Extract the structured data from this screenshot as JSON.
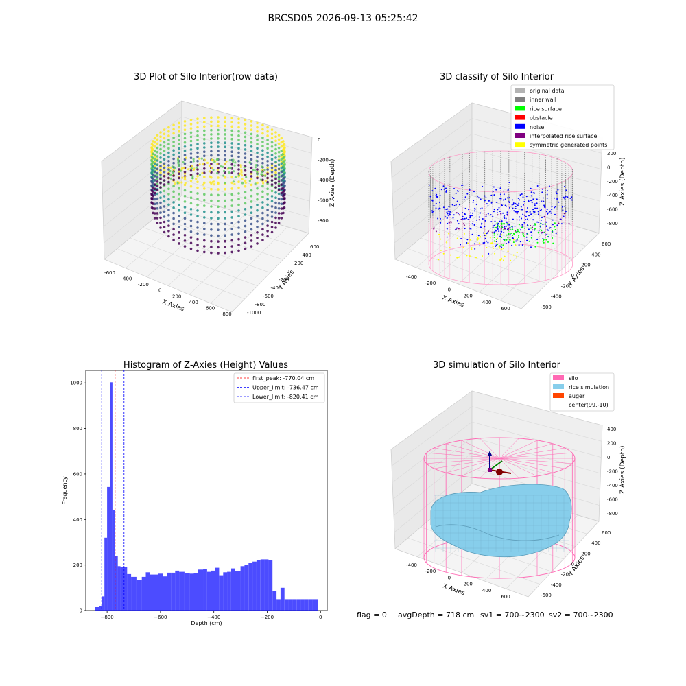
{
  "figure_title": "BRCSD05 2026-09-13 05:25:42",
  "footer": {
    "flag": "flag = 0",
    "avg_depth": "avgDepth = 718 cm",
    "sv1": "sv1 = 700~2300",
    "sv2": "sv2 = 700~2300"
  },
  "chart_data": [
    {
      "type": "scatter",
      "panel": "3d-raw",
      "title": "3D Plot of Silo Interior(row data)",
      "xlabel": "X Axies",
      "ylabel": "Y Axies",
      "zlabel": "Z Axies (Depth)",
      "xticks": [
        "-600",
        "-400",
        "-200",
        "0",
        "200",
        "400",
        "600",
        "800"
      ],
      "yticks": [
        "600",
        "400",
        "200",
        "0",
        "-200",
        "-400",
        "-600",
        "-800",
        "-1000"
      ],
      "zticks": [
        "0",
        "-200",
        "-400",
        "-600",
        "-800"
      ],
      "colormap": [
        "#440154",
        "#3b528b",
        "#21918c",
        "#5ec962",
        "#fde725"
      ],
      "grid": true
    },
    {
      "type": "scatter",
      "panel": "3d-classify",
      "title": "3D classify of Silo Interior",
      "xlabel": "X Axies",
      "ylabel": "Y Axies",
      "zlabel": "Z Axies (Depth)",
      "xticks": [
        "-400",
        "-200",
        "0",
        "200",
        "400",
        "600"
      ],
      "yticks": [
        "600",
        "400",
        "200",
        "0",
        "-200",
        "-400",
        "-600"
      ],
      "zticks": [
        "200",
        "0",
        "-200",
        "-400",
        "-600",
        "-800"
      ],
      "legend_position": "top-right",
      "legend": [
        {
          "label": "original data",
          "color": "#b3b3b3"
        },
        {
          "label": "inner wall",
          "color": "#808080"
        },
        {
          "label": "rice surface",
          "color": "#00ff00"
        },
        {
          "label": "obstacle",
          "color": "#ff0000"
        },
        {
          "label": "noise",
          "color": "#0000ff"
        },
        {
          "label": "interpolated rice surface",
          "color": "#800080"
        },
        {
          "label": "symmetric generated points",
          "color": "#ffff00"
        }
      ],
      "grid": true
    },
    {
      "type": "bar",
      "panel": "histogram",
      "title": "Histogram of Z-Axies (Height) Values",
      "xlabel": "Depth (cm)",
      "ylabel": "Frequency",
      "xlim": [
        -880,
        25
      ],
      "ylim": [
        0,
        1055
      ],
      "xticks": [
        -800,
        -600,
        -400,
        -200,
        0
      ],
      "yticks": [
        0,
        200,
        400,
        600,
        800,
        1000
      ],
      "bar_color": "#0000ff",
      "bin_edges": [
        -845,
        -830,
        -820,
        -810,
        -800,
        -790,
        -780,
        -770,
        -760,
        -750,
        -740,
        -725,
        -710,
        -690,
        -670,
        -655,
        -640,
        -625,
        -610,
        -590,
        -575,
        -560,
        -545,
        -530,
        -510,
        -490,
        -475,
        -460,
        -440,
        -425,
        -410,
        -395,
        -380,
        -365,
        -350,
        -335,
        -320,
        -300,
        -285,
        -270,
        -255,
        -240,
        -225,
        -210,
        -195,
        -180,
        -165,
        -150,
        -135,
        -120,
        -105,
        -90,
        -75,
        -60,
        -45,
        -30,
        -10
      ],
      "values": [
        15,
        20,
        62,
        320,
        543,
        1003,
        440,
        240,
        195,
        190,
        190,
        160,
        148,
        135,
        148,
        168,
        158,
        158,
        162,
        150,
        166,
        166,
        175,
        170,
        165,
        162,
        165,
        180,
        182,
        170,
        175,
        188,
        155,
        168,
        170,
        185,
        172,
        195,
        200,
        210,
        215,
        220,
        225,
        225,
        222,
        85,
        50,
        100,
        50,
        50,
        50,
        50,
        50,
        50,
        50,
        50
      ],
      "lines": [
        {
          "label": "first_peak: -770.04 cm",
          "x": -770.04,
          "color": "#ff0000"
        },
        {
          "label": "Upper_limit: -736.47 cm",
          "x": -736.47,
          "color": "#0000ff"
        },
        {
          "label": "Lower_limit: -820.41 cm",
          "x": -820.41,
          "color": "#0000ff"
        }
      ],
      "legend_position": "top-right"
    },
    {
      "type": "area",
      "panel": "3d-simulation",
      "title": "3D simulation of Silo Interior",
      "xlabel": "X Axies",
      "ylabel": "Y Axies",
      "zlabel": "Z Axies (Depth)",
      "xticks": [
        "-400",
        "-200",
        "0",
        "200",
        "400",
        "600"
      ],
      "yticks": [
        "600",
        "400",
        "200",
        "0",
        "-200",
        "-400",
        "-600"
      ],
      "zticks": [
        "400",
        "200",
        "0",
        "-200",
        "-400",
        "-600",
        "-800"
      ],
      "legend_position": "top-right",
      "legend": [
        {
          "label": "silo",
          "color": "#ff69b4"
        },
        {
          "label": "rice simulation",
          "color": "#87ceeb"
        },
        {
          "label": "auger",
          "color": "#ff4500"
        },
        {
          "label": "center(99,-10)",
          "color": "#ffffff"
        }
      ],
      "grid": true
    }
  ]
}
